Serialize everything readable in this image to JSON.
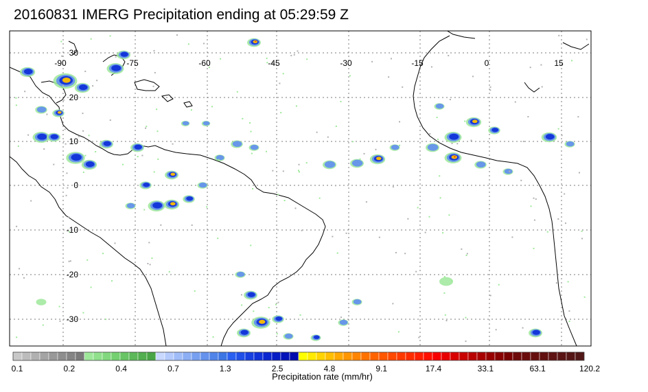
{
  "title": "20160831 IMERG Precipitation ending at 05:29:59 Z",
  "map": {
    "lon_labels": [
      "-90",
      "-75",
      "-60",
      "-45",
      "-30",
      "-15",
      "0",
      "15"
    ],
    "lat_labels": [
      "30",
      "20",
      "10",
      "0",
      "-10",
      "-20",
      "-30"
    ]
  },
  "colorbar": {
    "tick_labels": [
      "0.1",
      "0.2",
      "0.4",
      "0.7",
      "1.3",
      "2.5",
      "4.8",
      "9.1",
      "17.4",
      "33.1",
      "63.1",
      "120.2"
    ],
    "title": "Precipitation rate (mm/hr)",
    "color_groups": [
      {
        "colors": [
          "#c8c8c8",
          "#bcbcbc",
          "#b0b0b0",
          "#a4a4a4",
          "#989898",
          "#8e8e8e",
          "#848484",
          "#7a7a7a"
        ]
      },
      {
        "colors": [
          "#9ee89a",
          "#90e08c",
          "#82d87e",
          "#74d070",
          "#68c464",
          "#5cb858",
          "#52ae4e",
          "#48a444"
        ]
      },
      {
        "colors": [
          "#c8d8ff",
          "#b4cafc",
          "#a0bcf8",
          "#8caef4",
          "#78a0f0",
          "#6492ec",
          "#5084e8",
          "#3c76e4"
        ]
      },
      {
        "colors": [
          "#2a60f0",
          "#2050e8",
          "#1840e0",
          "#1032d8",
          "#0a26d0",
          "#061cc4",
          "#0414b8",
          "#020cac"
        ]
      },
      {
        "colors": [
          "#ffff00",
          "#ffea00",
          "#ffd400",
          "#ffbe00",
          "#ffa800",
          "#ff9600",
          "#ff8400",
          "#ff7200"
        ]
      },
      {
        "colors": [
          "#ff6400",
          "#ff5600",
          "#ff4800",
          "#ff3a00",
          "#ff2c00",
          "#ff1e00",
          "#ff1000",
          "#f80000"
        ]
      },
      {
        "colors": [
          "#e80000",
          "#d80000",
          "#c80000",
          "#b80000",
          "#a80000",
          "#980000",
          "#880000",
          "#780000"
        ]
      },
      {
        "colors": [
          "#6e0a0a",
          "#6a0c0c",
          "#660e0e",
          "#621010",
          "#5e1212",
          "#5a1414",
          "#561616",
          "#521818"
        ]
      }
    ]
  },
  "legend_colors": {
    "land_outline": "#000000",
    "gridline": "#7a7a7a"
  }
}
